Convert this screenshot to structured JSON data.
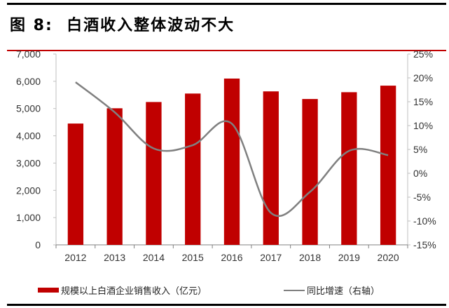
{
  "title": "图 8:  白酒收入整体波动不大",
  "colors": {
    "bar": "#c00000",
    "line": "#808080",
    "accent_rule": "#c00000"
  },
  "chart_data": {
    "type": "bar+line",
    "categories": [
      "2012",
      "2013",
      "2014",
      "2015",
      "2016",
      "2017",
      "2018",
      "2019",
      "2020"
    ],
    "series": [
      {
        "name": "规模以上白酒企业销售收入（亿元）",
        "type": "bar",
        "axis": "left",
        "values": [
          4450,
          5010,
          5240,
          5550,
          6100,
          5630,
          5350,
          5600,
          5840
        ]
      },
      {
        "name": "同比增速（右轴）",
        "type": "line",
        "axis": "right",
        "smooth": true,
        "values": [
          19.1,
          12.8,
          5.2,
          5.9,
          10.4,
          -8.3,
          -3.9,
          4.7,
          3.8
        ]
      }
    ],
    "left_axis": {
      "range": [
        0,
        7000
      ],
      "ticks": [
        "0",
        "1,000",
        "2,000",
        "3,000",
        "4,000",
        "5,000",
        "6,000",
        "7,000"
      ]
    },
    "right_axis": {
      "range": [
        -15,
        25
      ],
      "ticks": [
        "-15%",
        "-10%",
        "-5%",
        "0%",
        "5%",
        "10%",
        "15%",
        "20%",
        "25%"
      ]
    },
    "grid": false,
    "legend_position": "bottom"
  }
}
